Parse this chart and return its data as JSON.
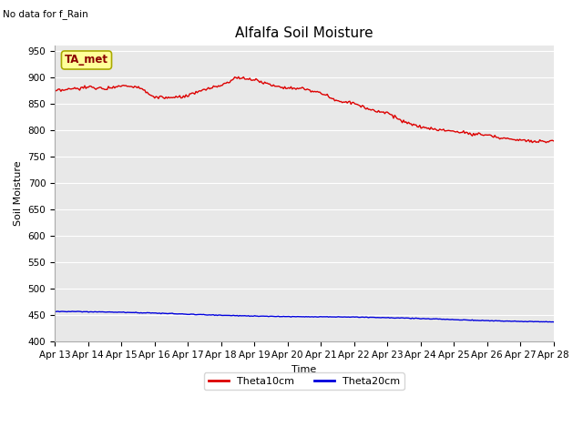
{
  "title": "Alfalfa Soil Moisture",
  "subtitle": "No data for f_Rain",
  "xlabel": "Time",
  "ylabel": "Soil Moisture",
  "ta_met_label": "TA_met",
  "ylim": [
    400,
    960
  ],
  "yticks": [
    400,
    450,
    500,
    550,
    600,
    650,
    700,
    750,
    800,
    850,
    900,
    950
  ],
  "date_labels": [
    "Apr 13",
    "Apr 14",
    "Apr 15",
    "Apr 16",
    "Apr 17",
    "Apr 18",
    "Apr 19",
    "Apr 20",
    "Apr 21",
    "Apr 22",
    "Apr 23",
    "Apr 24",
    "Apr 25",
    "Apr 26",
    "Apr 27",
    "Apr 28"
  ],
  "fig_bg_color": "#ffffff",
  "plot_bg_color": "#e8e8e8",
  "red_color": "#dd0000",
  "blue_color": "#0000dd",
  "grid_color": "#ffffff",
  "legend_labels": [
    "Theta10cm",
    "Theta20cm"
  ],
  "title_fontsize": 11,
  "axis_label_fontsize": 8,
  "tick_fontsize": 7.5,
  "legend_fontsize": 8
}
